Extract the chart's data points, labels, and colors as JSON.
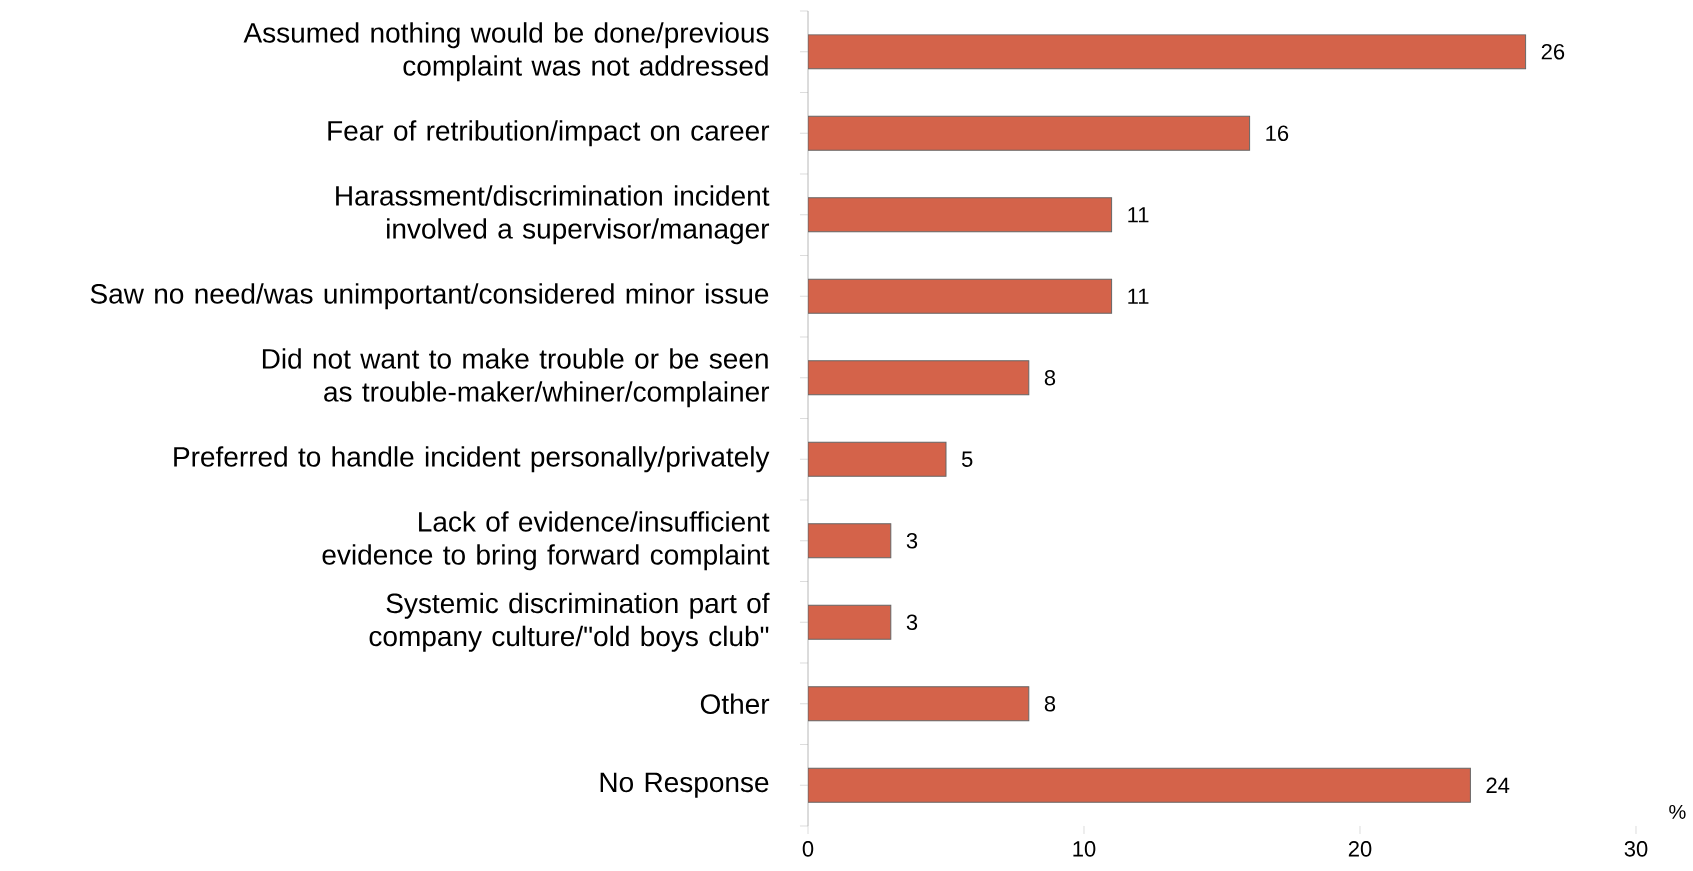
{
  "chart_data": {
    "type": "bar",
    "orientation": "horizontal",
    "xlabel": "%",
    "categories": [
      "Assumed nothing would be done/previous complaint was not addressed",
      "Fear of retribution/impact on career",
      "Harassment/discrimination incident involved a supervisor/manager",
      "Saw no need/was unimportant/considered minor issue",
      "Did not want to make trouble or be seen as trouble-maker/whiner/complainer",
      "Preferred to handle incident personally/privately",
      "Lack of evidence/insufficient evidence to bring forward complaint",
      "Systemic discrimination part of company culture/\"old boys club\"",
      "Other",
      "No Response"
    ],
    "values": [
      26,
      16,
      11,
      11,
      8,
      5,
      3,
      3,
      8,
      24
    ],
    "color": "#d4634a",
    "xlim": [
      0,
      30
    ],
    "xticks": [
      0,
      10,
      20,
      30
    ],
    "data_labels": true,
    "grid": false
  }
}
